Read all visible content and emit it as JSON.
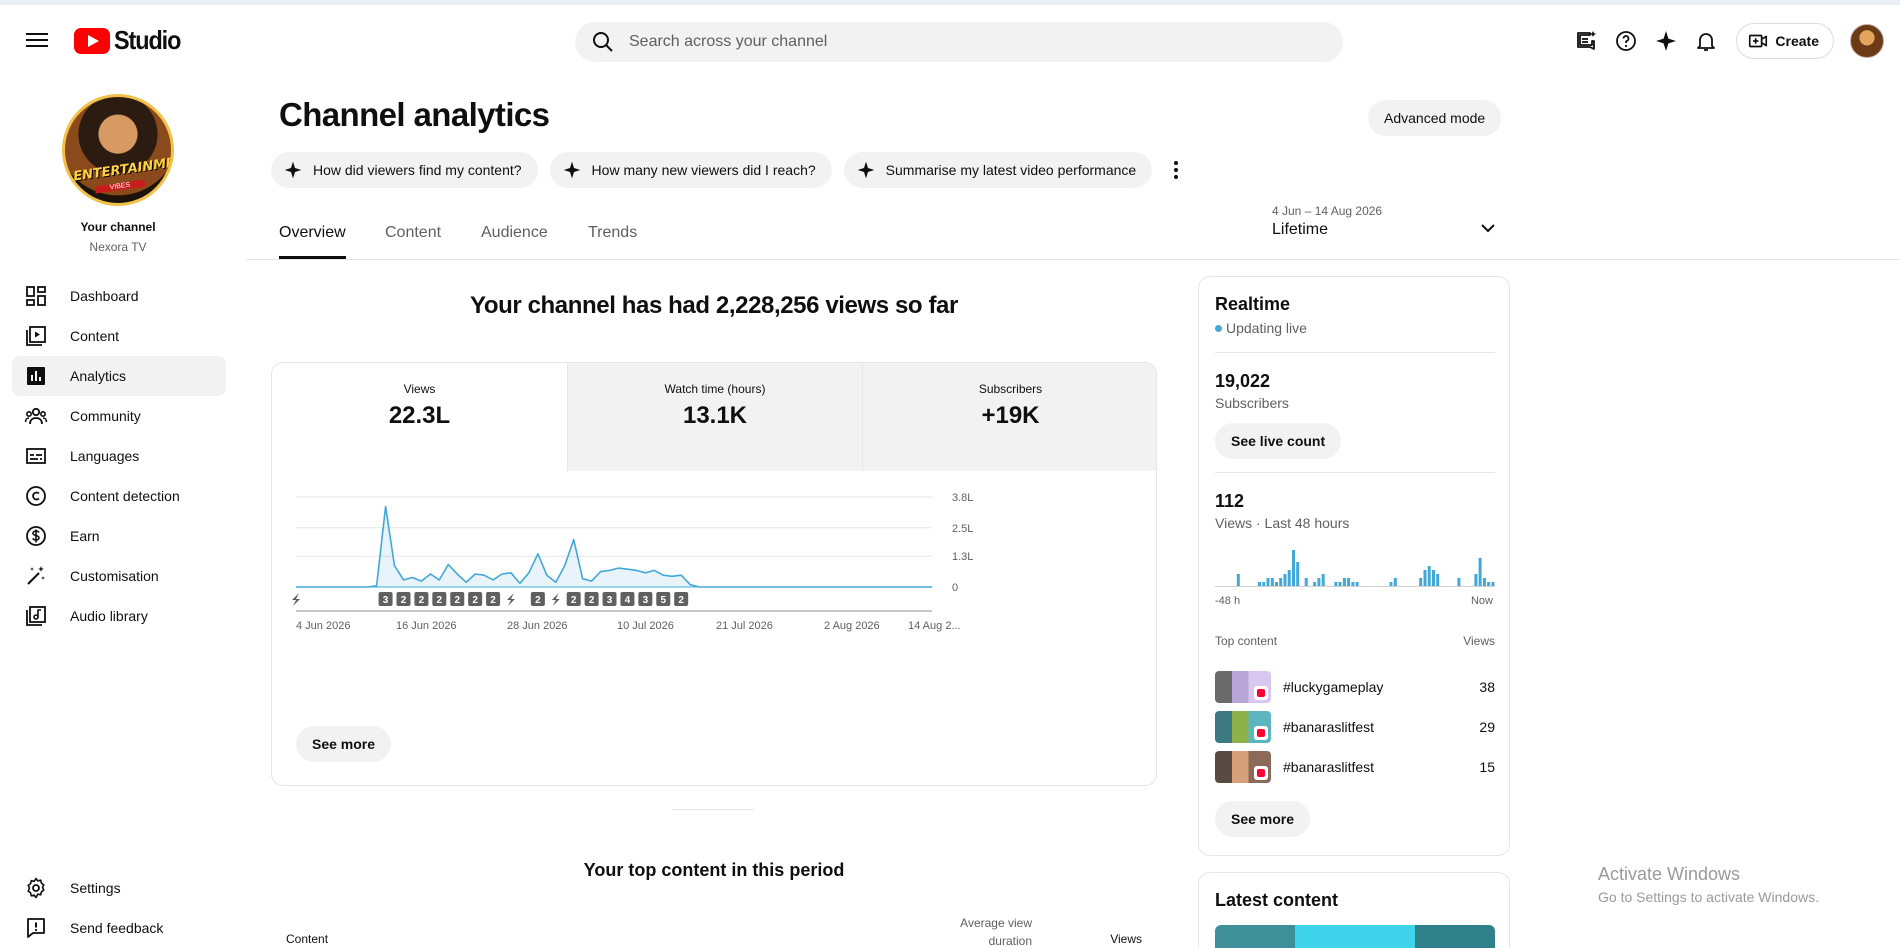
{
  "topbar": {
    "logo_text": "Studio",
    "search_placeholder": "Search across your channel",
    "create_label": "Create"
  },
  "sidebar": {
    "your_channel": "Your channel",
    "channel_name": "Nexora TV",
    "avatar_text": "ENTERTAINMENT",
    "avatar_subtext": "VIBES",
    "items": [
      {
        "label": "Dashboard",
        "icon": "dashboard-icon"
      },
      {
        "label": "Content",
        "icon": "content-icon"
      },
      {
        "label": "Analytics",
        "icon": "analytics-icon",
        "active": true
      },
      {
        "label": "Community",
        "icon": "community-icon"
      },
      {
        "label": "Languages",
        "icon": "subtitles-icon"
      },
      {
        "label": "Content detection",
        "icon": "copyright-icon"
      },
      {
        "label": "Earn",
        "icon": "dollar-icon"
      },
      {
        "label": "Customisation",
        "icon": "magic-wand-icon"
      },
      {
        "label": "Audio library",
        "icon": "audio-library-icon"
      }
    ],
    "bottom_items": [
      {
        "label": "Settings",
        "icon": "gear-icon"
      },
      {
        "label": "Send feedback",
        "icon": "feedback-icon"
      }
    ]
  },
  "header": {
    "title": "Channel analytics",
    "advanced_mode": "Advanced mode",
    "chips": [
      "How did viewers find my content?",
      "How many new viewers did I reach?",
      "Summarise my latest video performance"
    ],
    "tabs": [
      "Overview",
      "Content",
      "Audience",
      "Trends"
    ],
    "active_tab": "Overview",
    "date_range": "4 Jun – 14 Aug 2026",
    "date_value": "Lifetime"
  },
  "overview": {
    "headline": "Your channel has had 2,228,256 views so far",
    "metrics": [
      {
        "label": "Views",
        "value": "22.3L",
        "active": true
      },
      {
        "label": "Watch time (hours)",
        "value": "13.1K",
        "active": false
      },
      {
        "label": "Subscribers",
        "value": "+19K",
        "active": false
      }
    ],
    "see_more": "See more",
    "top_content_title": "Your top content in this period",
    "table_headers": {
      "content": "Content",
      "avg_view_duration_1": "Average view",
      "avg_view_duration_2": "duration",
      "views": "Views"
    }
  },
  "chart_data": {
    "type": "area",
    "ylabel": "",
    "y_tick_labels": [
      "0",
      "1.3L",
      "2.5L",
      "3.8L"
    ],
    "y_tick_values": [
      0,
      130000,
      250000,
      380000
    ],
    "ylim": [
      0,
      380000
    ],
    "x_tick_labels": [
      "4 Jun 2026",
      "16 Jun 2026",
      "28 Jun 2026",
      "10 Jul 2026",
      "21 Jul 2026",
      "2 Aug 2026",
      "14 Aug 2..."
    ],
    "x_start": "2026-06-04",
    "x_end": "2026-08-14",
    "series": [
      {
        "color": "#41a8d7",
        "x": [
          "2026-06-04",
          "2026-06-05",
          "2026-06-06",
          "2026-06-07",
          "2026-06-08",
          "2026-06-09",
          "2026-06-10",
          "2026-06-11",
          "2026-06-12",
          "2026-06-13",
          "2026-06-14",
          "2026-06-15",
          "2026-06-16",
          "2026-06-17",
          "2026-06-18",
          "2026-06-19",
          "2026-06-20",
          "2026-06-21",
          "2026-06-22",
          "2026-06-23",
          "2026-06-24",
          "2026-06-25",
          "2026-06-26",
          "2026-06-27",
          "2026-06-28",
          "2026-06-29",
          "2026-06-30",
          "2026-07-01",
          "2026-07-02",
          "2026-07-03",
          "2026-07-04",
          "2026-07-05",
          "2026-07-06",
          "2026-07-07",
          "2026-07-08",
          "2026-07-09",
          "2026-07-10",
          "2026-07-11",
          "2026-07-12",
          "2026-07-13",
          "2026-07-14",
          "2026-07-15",
          "2026-07-16",
          "2026-07-17",
          "2026-07-18",
          "2026-07-19",
          "2026-07-20",
          "2026-07-21",
          "2026-07-22",
          "2026-08-14"
        ],
        "values": [
          0,
          0,
          0,
          0,
          0,
          0,
          0,
          0,
          0,
          5000,
          340000,
          90000,
          30000,
          40000,
          25000,
          55000,
          30000,
          95000,
          55000,
          20000,
          55000,
          50000,
          30000,
          55000,
          60000,
          15000,
          60000,
          140000,
          50000,
          20000,
          90000,
          200000,
          35000,
          25000,
          65000,
          70000,
          80000,
          75000,
          70000,
          60000,
          70000,
          50000,
          45000,
          50000,
          10000,
          0,
          0,
          0,
          0,
          0
        ]
      }
    ],
    "publish_markers": [
      {
        "date": "2026-06-04",
        "label": "shorts"
      },
      {
        "date": "2026-06-14",
        "label": "3"
      },
      {
        "date": "2026-06-16",
        "label": "2"
      },
      {
        "date": "2026-06-18",
        "label": "2"
      },
      {
        "date": "2026-06-20",
        "label": "2"
      },
      {
        "date": "2026-06-22",
        "label": "2"
      },
      {
        "date": "2026-06-24",
        "label": "2"
      },
      {
        "date": "2026-06-26",
        "label": "2"
      },
      {
        "date": "2026-06-28",
        "label": "shorts"
      },
      {
        "date": "2026-07-01",
        "label": "2"
      },
      {
        "date": "2026-07-03",
        "label": "shorts"
      },
      {
        "date": "2026-07-05",
        "label": "2"
      },
      {
        "date": "2026-07-07",
        "label": "2"
      },
      {
        "date": "2026-07-09",
        "label": "3"
      },
      {
        "date": "2026-07-11",
        "label": "4"
      },
      {
        "date": "2026-07-13",
        "label": "3"
      },
      {
        "date": "2026-07-15",
        "label": "5"
      },
      {
        "date": "2026-07-17",
        "label": "2"
      }
    ],
    "grid": true
  },
  "realtime": {
    "title": "Realtime",
    "status": "Updating live",
    "subscribers_value": "19,022",
    "subscribers_label": "Subscribers",
    "see_live_count": "See live count",
    "views_value": "112",
    "views_label": "Views · Last 48 hours",
    "mini_chart_values": [
      0,
      0,
      0,
      0,
      0,
      3,
      0,
      0,
      0,
      0,
      1,
      1,
      2,
      2,
      1,
      2,
      3,
      4,
      9,
      6,
      0,
      2,
      0,
      1,
      2,
      3,
      0,
      0,
      1,
      1,
      2,
      2,
      1,
      1,
      0,
      0,
      0,
      0,
      0,
      0,
      0,
      1,
      2,
      0,
      0,
      0,
      0,
      0,
      2,
      4,
      5,
      4,
      3,
      0,
      0,
      0,
      0,
      2,
      0,
      0,
      0,
      3,
      7,
      2,
      1,
      1
    ],
    "mini_left": "-48 h",
    "mini_right": "Now",
    "top_content_label": "Top content",
    "views_header": "Views",
    "top_content": [
      {
        "title": "#luckygameplay",
        "views": "38"
      },
      {
        "title": "#banaraslitfest",
        "views": "29"
      },
      {
        "title": "#banaraslitfest",
        "views": "15"
      }
    ],
    "see_more": "See more"
  },
  "latest": {
    "title": "Latest content"
  },
  "watermark": {
    "line1": "Activate Windows",
    "line2": "Go to Settings to activate Windows."
  }
}
